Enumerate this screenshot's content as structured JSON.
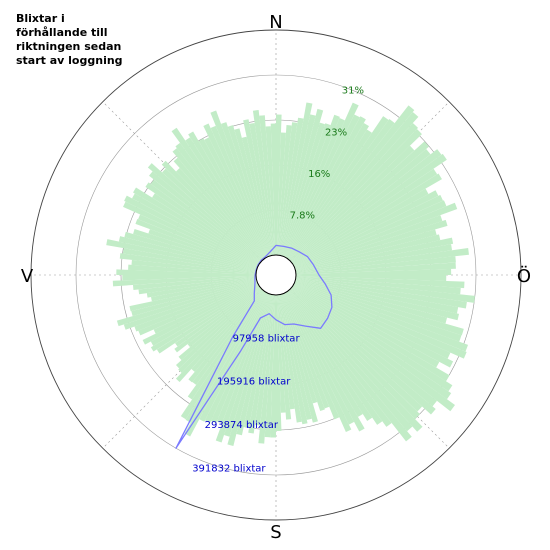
{
  "chart_data": {
    "type": "polar",
    "title": "Blixtar i förhållande till riktningen sedan start av logning",
    "title_text": "Blixtar i förhållande till riktningen sedan start av loggning",
    "compass": {
      "north": "N",
      "east": "Ö",
      "south": "S",
      "west": "V"
    },
    "percent_ring_labels": [
      "7.8%",
      "16%",
      "23%",
      "31%"
    ],
    "percent_ring_values": [
      7.8,
      16,
      23,
      31
    ],
    "count_ring_labels": [
      "97958 blixtar",
      "195916 blixtar",
      "293874 blixtar",
      "391832 blixtar"
    ],
    "count_ring_values": [
      97958,
      195916,
      293874,
      391832
    ],
    "colors": {
      "percent_area": "#c2ecc7",
      "percent_label": "#1a7a1a",
      "count_line": "#7a7aff",
      "count_label": "#0000cc",
      "grid": "#999999"
    },
    "grid": true,
    "series": [
      {
        "kind": "area",
        "unit": "percent",
        "bearing_deg": [
          0,
          10,
          20,
          30,
          40,
          50,
          60,
          70,
          80,
          90,
          100,
          110,
          120,
          130,
          140,
          150,
          160,
          170,
          180,
          190,
          200,
          210,
          220,
          230,
          240,
          250,
          260,
          270,
          280,
          290,
          300,
          310,
          320,
          330,
          340,
          350
        ],
        "values": [
          23,
          24,
          26,
          27,
          32,
          31,
          29,
          27,
          27,
          28,
          29,
          30,
          31,
          33,
          31,
          26,
          22,
          21,
          23,
          25,
          25,
          26,
          20,
          18,
          20,
          24,
          20,
          23,
          24,
          22,
          25,
          23,
          24,
          25,
          24,
          23
        ]
      },
      {
        "kind": "line",
        "unit": "blixtar",
        "bearing_deg": [
          0,
          15,
          30,
          45,
          60,
          75,
          90,
          100,
          110,
          120,
          130,
          140,
          150,
          160,
          170,
          180,
          190,
          200,
          205,
          210,
          215,
          220,
          230,
          240,
          250,
          260,
          270,
          285,
          300,
          315,
          330,
          345
        ],
        "values": [
          21000,
          21000,
          24000,
          28000,
          36000,
          41000,
          50000,
          65000,
          84000,
          97000,
          103000,
          108000,
          85000,
          70000,
          66000,
          54000,
          42000,
          56000,
          140000,
          391832,
          120000,
          30000,
          18000,
          10000,
          5000,
          3000,
          2000,
          1000,
          1500,
          2000,
          2500,
          8000
        ]
      }
    ]
  }
}
